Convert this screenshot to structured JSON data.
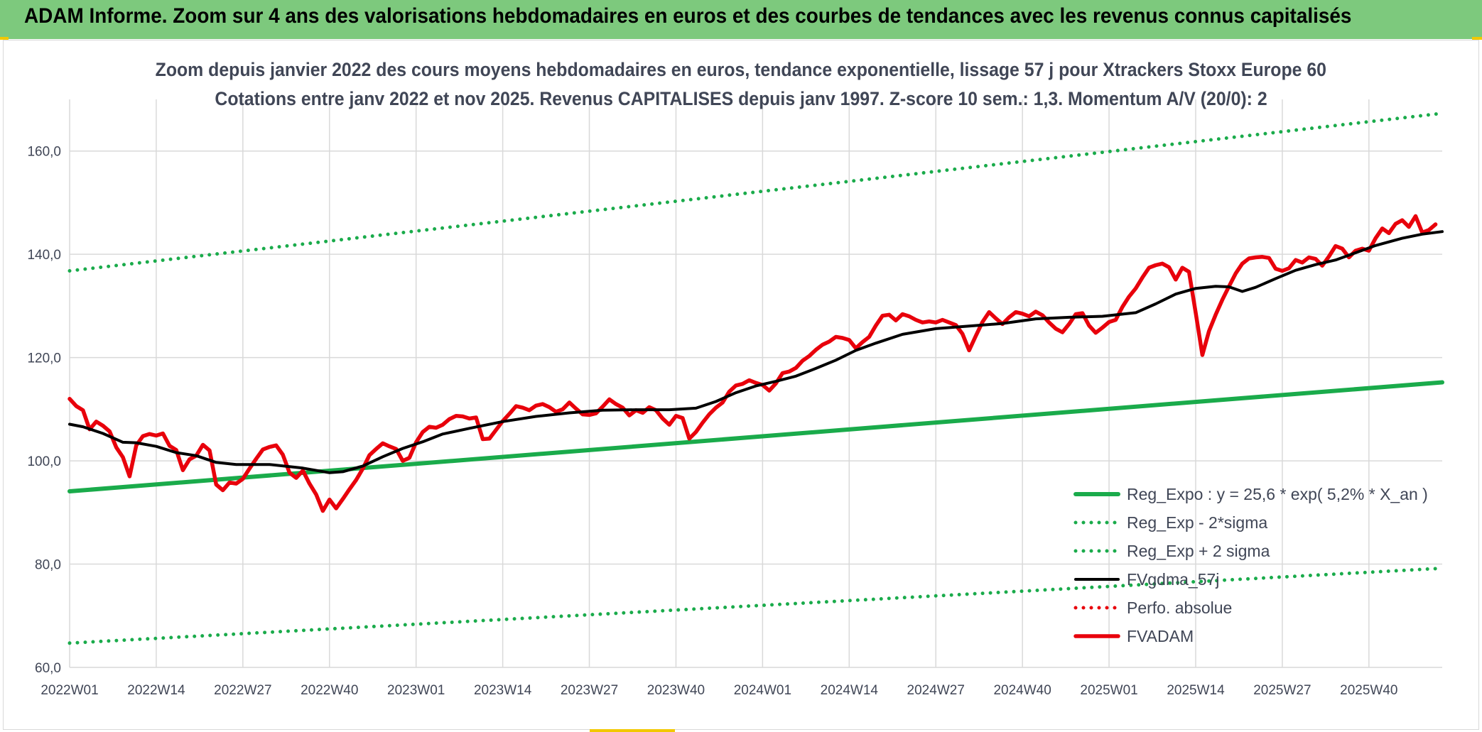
{
  "header": {
    "title": "ADAM Informe. Zoom sur 4 ans des valorisations hebdomadaires en euros et des courbes de tendances avec les revenus connus capitalisés"
  },
  "colors": {
    "header_bg": "#7dc97d",
    "green": "#1aab4b",
    "black": "#000000",
    "red": "#e8000b",
    "grid": "#d9d9d9",
    "text": "#404656"
  },
  "chart_data": {
    "type": "line",
    "title": "Zoom depuis janvier 2022 des cours moyens hebdomadaires en euros, tendance exponentielle, lissage 57 j pour Xtrackers Stoxx Europe 60",
    "subtitle": "Cotations entre janv 2022 et nov 2025. Revenus CAPITALISES depuis janv 1997. Z-score 10 sem.: 1,3. Momentum A/V (20/0): 2",
    "xlabel": "",
    "ylabel": "",
    "ylim": [
      60,
      170
    ],
    "yticks": [
      "60,0",
      "80,0",
      "100,0",
      "120,0",
      "140,0",
      "160,0"
    ],
    "ytick_values": [
      60,
      80,
      100,
      120,
      140,
      160
    ],
    "xticks": [
      "2022W01",
      "2022W14",
      "2022W27",
      "2022W40",
      "2023W01",
      "2023W14",
      "2023W27",
      "2023W40",
      "2024W01",
      "2024W14",
      "2024W27",
      "2024W40",
      "2025W01",
      "2025W14",
      "2025W27",
      "2025W40"
    ],
    "x_range_weeks": [
      0,
      206
    ],
    "grid": true,
    "legend_position": "bottom-right",
    "series": [
      {
        "name": "Reg_Expo : y = 25,6 * exp( 5,2% *  X_an )",
        "style": "solid-thick",
        "color": "#1aab4b",
        "points": [
          [
            0,
            94.1
          ],
          [
            206,
            115.2
          ]
        ]
      },
      {
        "name": "Reg_Exp - 2*sigma",
        "style": "dotted",
        "color": "#1aab4b",
        "points": [
          [
            0,
            64.7
          ],
          [
            206,
            79.2
          ]
        ]
      },
      {
        "name": "Reg_Exp + 2 sigma",
        "style": "dotted",
        "color": "#1aab4b",
        "points": [
          [
            0,
            136.8
          ],
          [
            206,
            167.3
          ]
        ]
      },
      {
        "name": "FVgdma_57j",
        "style": "solid",
        "color": "#000000",
        "points": [
          [
            0,
            107.1
          ],
          [
            2,
            106.6
          ],
          [
            5,
            105.3
          ],
          [
            8,
            103.6
          ],
          [
            10,
            103.5
          ],
          [
            13,
            102.8
          ],
          [
            16,
            101.6
          ],
          [
            19,
            101
          ],
          [
            22,
            99.7
          ],
          [
            25,
            99.3
          ],
          [
            30,
            99.3
          ],
          [
            35,
            98.6
          ],
          [
            39,
            97.7
          ],
          [
            41,
            97.9
          ],
          [
            44,
            99
          ],
          [
            47,
            100.8
          ],
          [
            50,
            102.4
          ],
          [
            53,
            103.7
          ],
          [
            56,
            105.2
          ],
          [
            60,
            106.3
          ],
          [
            65,
            107.6
          ],
          [
            70,
            108.6
          ],
          [
            75,
            109.3
          ],
          [
            80,
            109.8
          ],
          [
            85,
            109.9
          ],
          [
            90,
            109.9
          ],
          [
            94,
            110.2
          ],
          [
            97,
            111.5
          ],
          [
            100,
            113.2
          ],
          [
            103,
            114.5
          ],
          [
            106,
            115.4
          ],
          [
            109,
            116.4
          ],
          [
            112,
            117.9
          ],
          [
            115,
            119.5
          ],
          [
            118,
            121.4
          ],
          [
            121,
            122.8
          ],
          [
            125,
            124.5
          ],
          [
            130,
            125.6
          ],
          [
            135,
            126.1
          ],
          [
            140,
            126.6
          ],
          [
            145,
            127.5
          ],
          [
            150,
            127.8
          ],
          [
            155,
            128
          ],
          [
            160,
            128.7
          ],
          [
            163,
            130.4
          ],
          [
            166,
            132.3
          ],
          [
            169,
            133.4
          ],
          [
            172,
            133.8
          ],
          [
            174,
            133.7
          ],
          [
            176,
            132.8
          ],
          [
            178,
            133.6
          ],
          [
            181,
            135.3
          ],
          [
            184,
            136.9
          ],
          [
            187,
            138
          ],
          [
            190,
            138.9
          ],
          [
            193,
            140.3
          ],
          [
            196,
            141.7
          ],
          [
            200,
            143.1
          ],
          [
            203,
            143.9
          ],
          [
            206,
            144.4
          ]
        ]
      },
      {
        "name": "Perfo. absolue",
        "style": "dotted",
        "color": "#e8000b",
        "points": []
      },
      {
        "name": "FVADAM",
        "style": "solid-thick",
        "color": "#e8000b",
        "points": [
          [
            0,
            112
          ],
          [
            1,
            110.6
          ],
          [
            2,
            109.8
          ],
          [
            3,
            106.1
          ],
          [
            4,
            107.6
          ],
          [
            5,
            106.8
          ],
          [
            6,
            105.7
          ],
          [
            7,
            102.6
          ],
          [
            8,
            100.7
          ],
          [
            9,
            97
          ],
          [
            10,
            103
          ],
          [
            11,
            104.8
          ],
          [
            12,
            105.2
          ],
          [
            13,
            104.9
          ],
          [
            14,
            105.3
          ],
          [
            15,
            102.9
          ],
          [
            16,
            102.1
          ],
          [
            17,
            98.2
          ],
          [
            18,
            100.3
          ],
          [
            19,
            101
          ],
          [
            20,
            103.1
          ],
          [
            21,
            102
          ],
          [
            22,
            95.4
          ],
          [
            23,
            94.3
          ],
          [
            24,
            95.8
          ],
          [
            25,
            95.6
          ],
          [
            26,
            96.5
          ],
          [
            27,
            98.5
          ],
          [
            28,
            100.4
          ],
          [
            29,
            102.2
          ],
          [
            30,
            102.7
          ],
          [
            31,
            103
          ],
          [
            32,
            101.2
          ],
          [
            33,
            97.7
          ],
          [
            34,
            96.7
          ],
          [
            35,
            98.1
          ],
          [
            36,
            95.6
          ],
          [
            37,
            93.5
          ],
          [
            38,
            90.3
          ],
          [
            39,
            92.5
          ],
          [
            40,
            90.8
          ],
          [
            41,
            92.6
          ],
          [
            42,
            94.5
          ],
          [
            43,
            96.3
          ],
          [
            44,
            98.5
          ],
          [
            45,
            101.1
          ],
          [
            46,
            102.3
          ],
          [
            47,
            103.4
          ],
          [
            48,
            102.8
          ],
          [
            49,
            102.3
          ],
          [
            50,
            100
          ],
          [
            51,
            100.6
          ],
          [
            52,
            103.6
          ],
          [
            53,
            105.6
          ],
          [
            54,
            106.6
          ],
          [
            55,
            106.4
          ],
          [
            56,
            107
          ],
          [
            57,
            108.1
          ],
          [
            58,
            108.7
          ],
          [
            59,
            108.6
          ],
          [
            60,
            108.2
          ],
          [
            61,
            108.4
          ],
          [
            62,
            104.2
          ],
          [
            63,
            104.3
          ],
          [
            64,
            106
          ],
          [
            65,
            107.7
          ],
          [
            66,
            109.1
          ],
          [
            67,
            110.6
          ],
          [
            68,
            110.3
          ],
          [
            69,
            109.8
          ],
          [
            70,
            110.7
          ],
          [
            71,
            111
          ],
          [
            72,
            110.4
          ],
          [
            73,
            109.5
          ],
          [
            74,
            110
          ],
          [
            75,
            111.3
          ],
          [
            76,
            110.1
          ],
          [
            77,
            109
          ],
          [
            78,
            108.9
          ],
          [
            79,
            109.2
          ],
          [
            80,
            110.5
          ],
          [
            81,
            111.9
          ],
          [
            82,
            111
          ],
          [
            83,
            110.3
          ],
          [
            84,
            108.8
          ],
          [
            85,
            109.8
          ],
          [
            86,
            109.3
          ],
          [
            87,
            110.4
          ],
          [
            88,
            109.8
          ],
          [
            89,
            108.2
          ],
          [
            90,
            107
          ],
          [
            91,
            108.7
          ],
          [
            92,
            108.3
          ],
          [
            93,
            104.3
          ],
          [
            94,
            105.6
          ],
          [
            95,
            107.4
          ],
          [
            96,
            109
          ],
          [
            97,
            110.3
          ],
          [
            98,
            111.3
          ],
          [
            99,
            113.4
          ],
          [
            100,
            114.6
          ],
          [
            101,
            114.9
          ],
          [
            102,
            115.6
          ],
          [
            103,
            115.1
          ],
          [
            104,
            114.7
          ],
          [
            105,
            113.6
          ],
          [
            106,
            115
          ],
          [
            107,
            117
          ],
          [
            108,
            117.3
          ],
          [
            109,
            118
          ],
          [
            110,
            119.4
          ],
          [
            111,
            120.3
          ],
          [
            112,
            121.5
          ],
          [
            113,
            122.5
          ],
          [
            114,
            123.1
          ],
          [
            115,
            124
          ],
          [
            116,
            123.8
          ],
          [
            117,
            123.4
          ],
          [
            118,
            121.8
          ],
          [
            119,
            123
          ],
          [
            120,
            124
          ],
          [
            121,
            126.2
          ],
          [
            122,
            128.1
          ],
          [
            123,
            128.3
          ],
          [
            124,
            127.2
          ],
          [
            125,
            128.4
          ],
          [
            126,
            128
          ],
          [
            127,
            127.3
          ],
          [
            128,
            126.8
          ],
          [
            129,
            127
          ],
          [
            130,
            126.8
          ],
          [
            131,
            127.3
          ],
          [
            132,
            126.8
          ],
          [
            133,
            126.3
          ],
          [
            134,
            124.6
          ],
          [
            135,
            121.4
          ],
          [
            136,
            124.2
          ],
          [
            137,
            126.9
          ],
          [
            138,
            128.8
          ],
          [
            139,
            127.6
          ],
          [
            140,
            126.5
          ],
          [
            141,
            127.8
          ],
          [
            142,
            128.8
          ],
          [
            143,
            128.5
          ],
          [
            144,
            128
          ],
          [
            145,
            128.9
          ],
          [
            146,
            128.2
          ],
          [
            147,
            126.8
          ],
          [
            148,
            125.6
          ],
          [
            149,
            124.9
          ],
          [
            150,
            126.5
          ],
          [
            151,
            128.4
          ],
          [
            152,
            128.6
          ],
          [
            153,
            126.2
          ],
          [
            154,
            124.8
          ],
          [
            155,
            125.8
          ],
          [
            156,
            126.9
          ],
          [
            157,
            127.3
          ],
          [
            158,
            129.8
          ],
          [
            159,
            131.8
          ],
          [
            160,
            133.4
          ],
          [
            161,
            135.5
          ],
          [
            162,
            137.4
          ],
          [
            163,
            137.9
          ],
          [
            164,
            138.2
          ],
          [
            165,
            137.5
          ],
          [
            166,
            135.1
          ],
          [
            167,
            137.4
          ],
          [
            168,
            136.6
          ],
          [
            169,
            128.7
          ],
          [
            170,
            120.5
          ],
          [
            171,
            125.1
          ],
          [
            172,
            128.3
          ],
          [
            173,
            131.2
          ],
          [
            174,
            133.8
          ],
          [
            175,
            136.3
          ],
          [
            176,
            138.2
          ],
          [
            177,
            139.2
          ],
          [
            178,
            139.4
          ],
          [
            179,
            139.5
          ],
          [
            180,
            139.3
          ],
          [
            181,
            137.2
          ],
          [
            182,
            136.8
          ],
          [
            183,
            137.3
          ],
          [
            184,
            138.9
          ],
          [
            185,
            138.4
          ],
          [
            186,
            139.4
          ],
          [
            187,
            139.1
          ],
          [
            188,
            137.8
          ],
          [
            189,
            139.6
          ],
          [
            190,
            141.6
          ],
          [
            191,
            141.1
          ],
          [
            192,
            139.4
          ],
          [
            193,
            140.7
          ],
          [
            194,
            141.1
          ],
          [
            195,
            140.7
          ],
          [
            196,
            143.1
          ],
          [
            197,
            145
          ],
          [
            198,
            144.1
          ],
          [
            199,
            145.9
          ],
          [
            200,
            146.6
          ],
          [
            201,
            145.3
          ],
          [
            202,
            147.4
          ],
          [
            203,
            144.2
          ],
          [
            204,
            144.7
          ],
          [
            205,
            145.8
          ]
        ]
      }
    ]
  }
}
